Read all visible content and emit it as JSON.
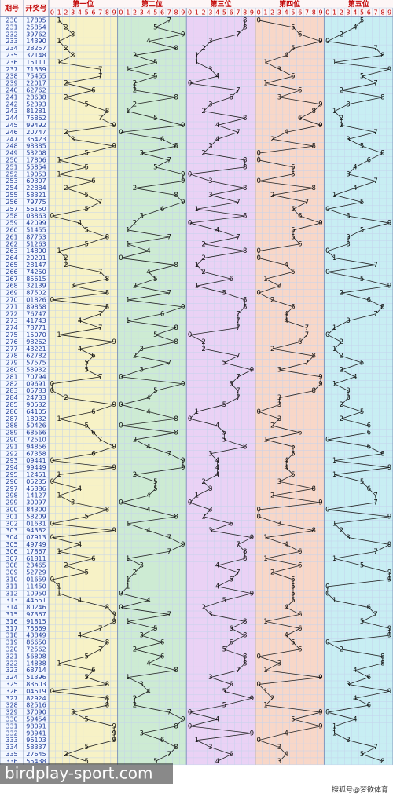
{
  "header": {
    "issue": "期号",
    "number": "开奖号"
  },
  "sections": [
    "第一位",
    "第二位",
    "第三位",
    "第四位",
    "第五位"
  ],
  "digit_labels": [
    0,
    1,
    2,
    3,
    4,
    5,
    6,
    7,
    8,
    9
  ],
  "rows": [
    {
      "issue": 230,
      "number": "17805",
      "digits": [
        1,
        7,
        8,
        0,
        5
      ]
    },
    {
      "issue": 231,
      "number": "25854",
      "digits": [
        2,
        5,
        8,
        5,
        4
      ]
    },
    {
      "issue": 232,
      "number": "39762",
      "digits": [
        3,
        9,
        7,
        6,
        2
      ]
    },
    {
      "issue": 233,
      "number": "14390",
      "digits": [
        1,
        4,
        3,
        9,
        0
      ]
    },
    {
      "issue": 234,
      "number": "28257",
      "digits": [
        2,
        8,
        2,
        5,
        7
      ]
    },
    {
      "issue": 235,
      "number": "32148",
      "digits": [
        3,
        2,
        1,
        4,
        8
      ]
    },
    {
      "issue": 236,
      "number": "15111",
      "digits": [
        1,
        5,
        1,
        1,
        1
      ]
    },
    {
      "issue": 237,
      "number": "71339",
      "digits": [
        7,
        1,
        3,
        3,
        9
      ]
    },
    {
      "issue": 238,
      "number": "75455",
      "digits": [
        7,
        5,
        4,
        5,
        5
      ]
    },
    {
      "issue": 239,
      "number": "22017",
      "digits": [
        2,
        2,
        0,
        1,
        7
      ]
    },
    {
      "issue": 240,
      "number": "62762",
      "digits": [
        6,
        2,
        7,
        6,
        2
      ]
    },
    {
      "issue": 241,
      "number": "28638",
      "digits": [
        2,
        8,
        6,
        3,
        8
      ]
    },
    {
      "issue": 242,
      "number": "52393",
      "digits": [
        5,
        2,
        3,
        9,
        3
      ]
    },
    {
      "issue": 243,
      "number": "81281",
      "digits": [
        8,
        1,
        2,
        8,
        1
      ]
    },
    {
      "issue": 244,
      "number": "75862",
      "digits": [
        7,
        5,
        8,
        6,
        2
      ]
    },
    {
      "issue": 245,
      "number": "99492",
      "digits": [
        9,
        9,
        4,
        9,
        2
      ]
    },
    {
      "issue": 246,
      "number": "20747",
      "digits": [
        2,
        0,
        7,
        4,
        7
      ]
    },
    {
      "issue": 247,
      "number": "36423",
      "digits": [
        3,
        6,
        4,
        2,
        3
      ]
    },
    {
      "issue": 248,
      "number": "98385",
      "digits": [
        9,
        8,
        3,
        8,
        5
      ]
    },
    {
      "issue": 249,
      "number": "53208",
      "digits": [
        5,
        3,
        2,
        0,
        8
      ]
    },
    {
      "issue": 250,
      "number": "17806",
      "digits": [
        1,
        7,
        8,
        0,
        6
      ]
    },
    {
      "issue": 251,
      "number": "55854",
      "digits": [
        5,
        5,
        8,
        5,
        4
      ]
    },
    {
      "issue": 252,
      "number": "19053",
      "digits": [
        1,
        9,
        0,
        5,
        3
      ]
    },
    {
      "issue": 253,
      "number": "69307",
      "digits": [
        6,
        9,
        3,
        0,
        7
      ]
    },
    {
      "issue": 254,
      "number": "22884",
      "digits": [
        2,
        2,
        8,
        8,
        4
      ]
    },
    {
      "issue": 255,
      "number": "58321",
      "digits": [
        5,
        8,
        3,
        2,
        1
      ]
    },
    {
      "issue": 256,
      "number": "79775",
      "digits": [
        7,
        9,
        7,
        7,
        5
      ]
    },
    {
      "issue": 257,
      "number": "56150",
      "digits": [
        5,
        6,
        1,
        5,
        0
      ]
    },
    {
      "issue": 258,
      "number": "03863",
      "digits": [
        0,
        3,
        8,
        6,
        3
      ]
    },
    {
      "issue": 259,
      "number": "42099",
      "digits": [
        4,
        2,
        0,
        9,
        9
      ]
    },
    {
      "issue": 260,
      "number": "51455",
      "digits": [
        5,
        1,
        4,
        5,
        5
      ]
    },
    {
      "issue": 261,
      "number": "87753",
      "digits": [
        8,
        7,
        7,
        5,
        3
      ]
    },
    {
      "issue": 262,
      "number": "51263",
      "digits": [
        5,
        1,
        2,
        6,
        3
      ]
    },
    {
      "issue": 263,
      "number": "14800",
      "digits": [
        1,
        4,
        8,
        0,
        0
      ]
    },
    {
      "issue": 264,
      "number": "20201",
      "digits": [
        2,
        0,
        2,
        0,
        1
      ]
    },
    {
      "issue": 265,
      "number": "28147",
      "digits": [
        2,
        8,
        1,
        4,
        7
      ]
    },
    {
      "issue": 266,
      "number": "74250",
      "digits": [
        7,
        4,
        2,
        5,
        0
      ]
    },
    {
      "issue": 267,
      "number": "85615",
      "digits": [
        8,
        5,
        6,
        1,
        5
      ]
    },
    {
      "issue": 268,
      "number": "32139",
      "digits": [
        3,
        2,
        1,
        3,
        9
      ]
    },
    {
      "issue": 269,
      "number": "87502",
      "digits": [
        8,
        7,
        5,
        0,
        2
      ]
    },
    {
      "issue": 270,
      "number": "01826",
      "digits": [
        0,
        1,
        8,
        2,
        6
      ]
    },
    {
      "issue": 271,
      "number": "89858",
      "digits": [
        8,
        9,
        8,
        5,
        8
      ]
    },
    {
      "issue": 272,
      "number": "76747",
      "digits": [
        7,
        6,
        7,
        4,
        7
      ]
    },
    {
      "issue": 273,
      "number": "41743",
      "digits": [
        4,
        1,
        7,
        4,
        3
      ]
    },
    {
      "issue": 274,
      "number": "78771",
      "digits": [
        7,
        8,
        7,
        7,
        1
      ]
    },
    {
      "issue": 275,
      "number": "15070",
      "digits": [
        1,
        5,
        0,
        7,
        0
      ]
    },
    {
      "issue": 276,
      "number": "98262",
      "digits": [
        9,
        8,
        2,
        6,
        2
      ]
    },
    {
      "issue": 277,
      "number": "43221",
      "digits": [
        4,
        3,
        2,
        2,
        1
      ]
    },
    {
      "issue": 278,
      "number": "62782",
      "digits": [
        6,
        2,
        7,
        8,
        2
      ]
    },
    {
      "issue": 279,
      "number": "57575",
      "digits": [
        5,
        7,
        5,
        7,
        5
      ]
    },
    {
      "issue": 280,
      "number": "53932",
      "digits": [
        5,
        3,
        9,
        3,
        2
      ]
    },
    {
      "issue": 281,
      "number": "70794",
      "digits": [
        7,
        0,
        7,
        9,
        4
      ]
    },
    {
      "issue": 282,
      "number": "09691",
      "digits": [
        0,
        9,
        6,
        9,
        1
      ]
    },
    {
      "issue": 283,
      "number": "05783",
      "digits": [
        0,
        5,
        7,
        8,
        3
      ]
    },
    {
      "issue": 284,
      "number": "24733",
      "digits": [
        2,
        4,
        7,
        3,
        3
      ]
    },
    {
      "issue": 285,
      "number": "90532",
      "digits": [
        9,
        0,
        5,
        3,
        2
      ]
    },
    {
      "issue": 286,
      "number": "64105",
      "digits": [
        6,
        4,
        1,
        0,
        5
      ]
    },
    {
      "issue": 287,
      "number": "18032",
      "digits": [
        1,
        8,
        0,
        3,
        2
      ]
    },
    {
      "issue": 288,
      "number": "50426",
      "digits": [
        5,
        0,
        4,
        2,
        6
      ]
    },
    {
      "issue": 289,
      "number": "68566",
      "digits": [
        6,
        8,
        5,
        6,
        6
      ]
    },
    {
      "issue": 290,
      "number": "72510",
      "digits": [
        7,
        2,
        5,
        1,
        0
      ]
    },
    {
      "issue": 291,
      "number": "94856",
      "digits": [
        9,
        4,
        8,
        5,
        6
      ]
    },
    {
      "issue": 292,
      "number": "67358",
      "digits": [
        6,
        7,
        3,
        5,
        8
      ]
    },
    {
      "issue": 293,
      "number": "09441",
      "digits": [
        0,
        9,
        4,
        4,
        1
      ]
    },
    {
      "issue": 294,
      "number": "99449",
      "digits": [
        9,
        9,
        4,
        4,
        9
      ]
    },
    {
      "issue": 295,
      "number": "12451",
      "digits": [
        1,
        2,
        4,
        5,
        1
      ]
    },
    {
      "issue": 296,
      "number": "05235",
      "digits": [
        0,
        5,
        2,
        3,
        5
      ]
    },
    {
      "issue": 297,
      "number": "45386",
      "digits": [
        4,
        5,
        3,
        8,
        6
      ]
    },
    {
      "issue": 298,
      "number": "14127",
      "digits": [
        1,
        4,
        1,
        2,
        7
      ]
    },
    {
      "issue": 299,
      "number": "30097",
      "digits": [
        3,
        0,
        0,
        9,
        7
      ]
    },
    {
      "issue": 300,
      "number": "84300",
      "digits": [
        8,
        4,
        3,
        0,
        0
      ]
    },
    {
      "issue": 301,
      "number": "58209",
      "digits": [
        5,
        8,
        2,
        0,
        9
      ]
    },
    {
      "issue": 302,
      "number": "01631",
      "digits": [
        0,
        1,
        6,
        3,
        1
      ]
    },
    {
      "issue": 303,
      "number": "94382",
      "digits": [
        9,
        4,
        3,
        8,
        2
      ]
    },
    {
      "issue": 304,
      "number": "07913",
      "digits": [
        0,
        7,
        9,
        1,
        3
      ]
    },
    {
      "issue": 305,
      "number": "49749",
      "digits": [
        4,
        9,
        7,
        4,
        9
      ]
    },
    {
      "issue": 306,
      "number": "17867",
      "digits": [
        1,
        7,
        8,
        6,
        7
      ]
    },
    {
      "issue": 307,
      "number": "61811",
      "digits": [
        6,
        1,
        8,
        1,
        1
      ]
    },
    {
      "issue": 308,
      "number": "23465",
      "digits": [
        2,
        3,
        4,
        6,
        5
      ]
    },
    {
      "issue": 309,
      "number": "52729",
      "digits": [
        5,
        2,
        7,
        2,
        9
      ]
    },
    {
      "issue": 310,
      "number": "01659",
      "digits": [
        0,
        1,
        6,
        5,
        9
      ]
    },
    {
      "issue": 311,
      "number": "11450",
      "digits": [
        1,
        1,
        4,
        5,
        0
      ]
    },
    {
      "issue": 312,
      "number": "10950",
      "digits": [
        1,
        0,
        9,
        5,
        0
      ]
    },
    {
      "issue": 313,
      "number": "44551",
      "digits": [
        4,
        4,
        5,
        5,
        1
      ]
    },
    {
      "issue": 314,
      "number": "80246",
      "digits": [
        8,
        0,
        2,
        4,
        6
      ]
    },
    {
      "issue": 315,
      "number": "97367",
      "digits": [
        9,
        7,
        3,
        6,
        7
      ]
    },
    {
      "issue": 316,
      "number": "91815",
      "digits": [
        9,
        1,
        8,
        1,
        5
      ]
    },
    {
      "issue": 317,
      "number": "75669",
      "digits": [
        7,
        5,
        6,
        6,
        9
      ]
    },
    {
      "issue": 318,
      "number": "43849",
      "digits": [
        4,
        3,
        8,
        4,
        9
      ]
    },
    {
      "issue": 319,
      "number": "86650",
      "digits": [
        8,
        6,
        6,
        5,
        0
      ]
    },
    {
      "issue": 320,
      "number": "72562",
      "digits": [
        7,
        2,
        5,
        6,
        2
      ]
    },
    {
      "issue": 321,
      "number": "56808",
      "digits": [
        5,
        6,
        8,
        0,
        8
      ]
    },
    {
      "issue": 322,
      "number": "14838",
      "digits": [
        1,
        4,
        8,
        3,
        8
      ]
    },
    {
      "issue": 323,
      "number": "68714",
      "digits": [
        6,
        8,
        7,
        1,
        4
      ]
    },
    {
      "issue": 324,
      "number": "51396",
      "digits": [
        5,
        1,
        3,
        9,
        6
      ]
    },
    {
      "issue": 325,
      "number": "83603",
      "digits": [
        8,
        3,
        6,
        0,
        3
      ]
    },
    {
      "issue": 326,
      "number": "04519",
      "digits": [
        0,
        4,
        5,
        1,
        9
      ]
    },
    {
      "issue": 327,
      "number": "82924",
      "digits": [
        8,
        2,
        9,
        2,
        4
      ]
    },
    {
      "issue": 328,
      "number": "82516",
      "digits": [
        8,
        2,
        5,
        1,
        6
      ]
    },
    {
      "issue": 329,
      "number": "37090",
      "digits": [
        3,
        7,
        0,
        9,
        0
      ]
    },
    {
      "issue": 330,
      "number": "59454",
      "digits": [
        5,
        9,
        4,
        5,
        4
      ]
    },
    {
      "issue": 331,
      "number": "98091",
      "digits": [
        9,
        8,
        0,
        9,
        1
      ]
    },
    {
      "issue": 332,
      "number": "93941",
      "digits": [
        9,
        3,
        9,
        4,
        1
      ]
    },
    {
      "issue": 333,
      "number": "96103",
      "digits": [
        9,
        6,
        1,
        0,
        3
      ]
    },
    {
      "issue": 334,
      "number": "58337",
      "digits": [
        5,
        8,
        3,
        3,
        7
      ]
    },
    {
      "issue": 335,
      "number": "27645",
      "digits": [
        2,
        7,
        6,
        4,
        5
      ]
    },
    {
      "issue": 336,
      "number": "55438",
      "digits": [
        5,
        5,
        4,
        3,
        8
      ]
    }
  ],
  "watermark": "birdplay-sport.com",
  "source": "搜狐号@梦欲体育"
}
